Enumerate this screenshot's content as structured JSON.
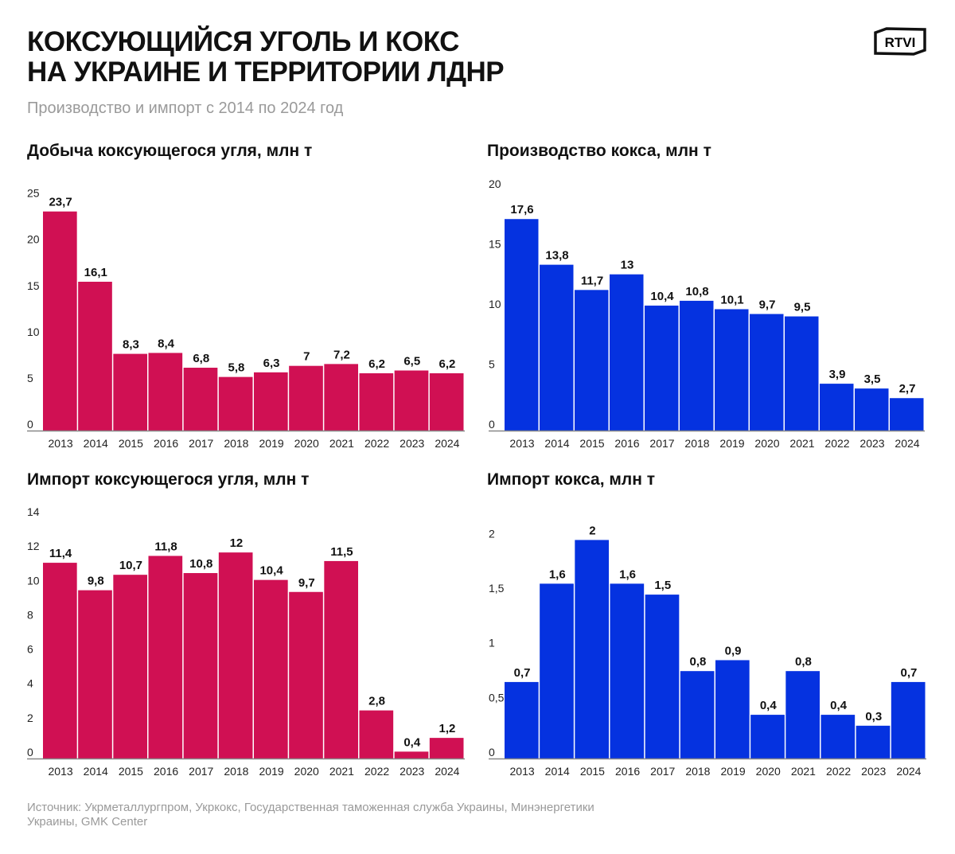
{
  "header": {
    "title_line1": "КОКСУЮЩИЙСЯ УГОЛЬ И КОКС",
    "title_line2": "НА УКРАИНЕ И ТЕРРИТОРИИ ЛДНР",
    "subtitle": "Производство и импорт с 2014 по 2024 год",
    "logo": "RTVI"
  },
  "source": "Источник: Укрметаллургпром, Укркокс, Государственная таможенная служба Украины, Минэнергетики Украины, GMK Center",
  "chart_data": [
    {
      "type": "bar",
      "title": "Добыча коксующегося угля, млн т",
      "color": "#d01053",
      "categories": [
        "2013",
        "2014",
        "2015",
        "2016",
        "2017",
        "2018",
        "2019",
        "2020",
        "2021",
        "2022",
        "2023",
        "2024"
      ],
      "values": [
        23.7,
        16.1,
        8.3,
        8.4,
        6.8,
        5.8,
        6.3,
        7,
        7.2,
        6.2,
        6.5,
        6.2
      ],
      "labels": [
        "23,7",
        "16,1",
        "8,3",
        "8,4",
        "6,8",
        "5,8",
        "6,3",
        "7",
        "7,2",
        "6,2",
        "6,5",
        "6,2"
      ],
      "yticks": [
        "0",
        "5",
        "10",
        "15",
        "20",
        "25"
      ],
      "ytick_values": [
        0,
        5,
        10,
        15,
        20,
        25
      ],
      "ylim": [
        0,
        26
      ],
      "grid": false
    },
    {
      "type": "bar",
      "title": "Производство кокса, млн т",
      "color": "#0532e0",
      "categories": [
        "2013",
        "2014",
        "2015",
        "2016",
        "2017",
        "2018",
        "2019",
        "2020",
        "2021",
        "2022",
        "2023",
        "2024"
      ],
      "values": [
        17.6,
        13.8,
        11.7,
        13,
        10.4,
        10.8,
        10.1,
        9.7,
        9.5,
        3.9,
        3.5,
        2.7
      ],
      "labels": [
        "17,6",
        "13,8",
        "11,7",
        "13",
        "10,4",
        "10,8",
        "10,1",
        "9,7",
        "9,5",
        "3,9",
        "3,5",
        "2,7"
      ],
      "yticks": [
        "0",
        "5",
        "10",
        "15",
        "20"
      ],
      "ytick_values": [
        0,
        5,
        10,
        15,
        20
      ],
      "ylim": [
        0,
        20
      ],
      "grid": false
    },
    {
      "type": "bar",
      "title": "Импорт коксующегося угля, млн т",
      "color": "#d01053",
      "categories": [
        "2013",
        "2014",
        "2015",
        "2016",
        "2017",
        "2018",
        "2019",
        "2020",
        "2021",
        "2022",
        "2023",
        "2024"
      ],
      "values": [
        11.4,
        9.8,
        10.7,
        11.8,
        10.8,
        12,
        10.4,
        9.7,
        11.5,
        2.8,
        0.4,
        1.2
      ],
      "labels": [
        "11,4",
        "9,8",
        "10,7",
        "11,8",
        "10,8",
        "12",
        "10,4",
        "9,7",
        "11,5",
        "2,8",
        "0,4",
        "1,2"
      ],
      "yticks": [
        "0",
        "2",
        "4",
        "6",
        "8",
        "10",
        "12",
        "14"
      ],
      "ytick_values": [
        0,
        2,
        4,
        6,
        8,
        10,
        12,
        14
      ],
      "ylim": [
        0,
        14
      ],
      "grid": false
    },
    {
      "type": "bar",
      "title": "Импорт кокса, млн т",
      "color": "#0532e0",
      "categories": [
        "2013",
        "2014",
        "2015",
        "2016",
        "2017",
        "2018",
        "2019",
        "2020",
        "2021",
        "2022",
        "2023",
        "2024"
      ],
      "values": [
        0.7,
        1.6,
        2,
        1.6,
        1.5,
        0.8,
        0.9,
        0.4,
        0.8,
        0.4,
        0.3,
        0.7
      ],
      "labels": [
        "0,7",
        "1,6",
        "2",
        "1,6",
        "1,5",
        "0,8",
        "0,9",
        "0,4",
        "0,8",
        "0,4",
        "0,3",
        "0,7"
      ],
      "yticks": [
        "0",
        "0,5",
        "1",
        "1,5",
        "2"
      ],
      "ytick_values": [
        0,
        0.5,
        1,
        1.5,
        2
      ],
      "ylim": [
        0,
        2.2
      ],
      "grid": false
    }
  ]
}
